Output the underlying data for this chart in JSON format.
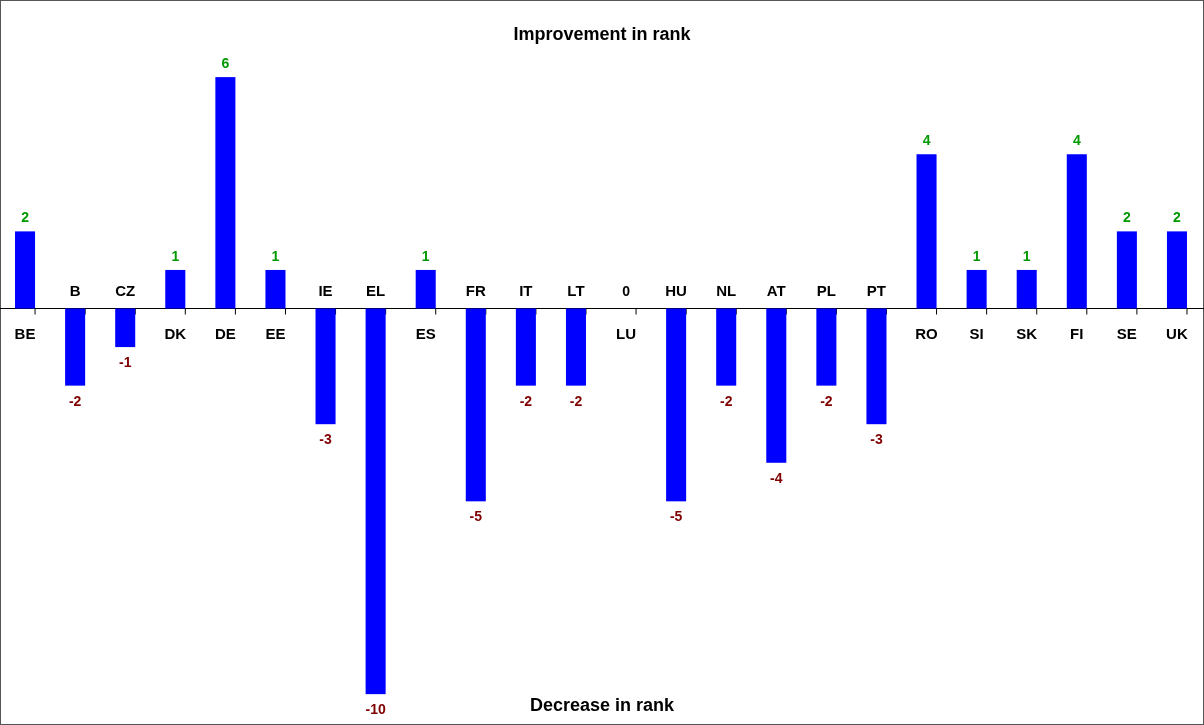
{
  "chart_data": {
    "type": "bar",
    "categories": [
      "BE",
      "B",
      "CZ",
      "DK",
      "DE",
      "EE",
      "IE",
      "EL",
      "ES",
      "FR",
      "IT",
      "LT",
      "LU",
      "HU",
      "NL",
      "AT",
      "PL",
      "PT",
      "RO",
      "SI",
      "SK",
      "FI",
      "SE",
      "UK"
    ],
    "values": [
      2,
      -2,
      -1,
      1,
      6,
      1,
      -3,
      -10,
      1,
      -5,
      -2,
      -2,
      0,
      -5,
      -2,
      -4,
      -2,
      -3,
      4,
      1,
      1,
      4,
      2,
      2
    ],
    "color": "#0000ff",
    "data_labels": true,
    "ylim": [
      -10.8,
      8
    ],
    "annotations": [
      "Improvement in rank",
      "Decrease in rank"
    ]
  }
}
